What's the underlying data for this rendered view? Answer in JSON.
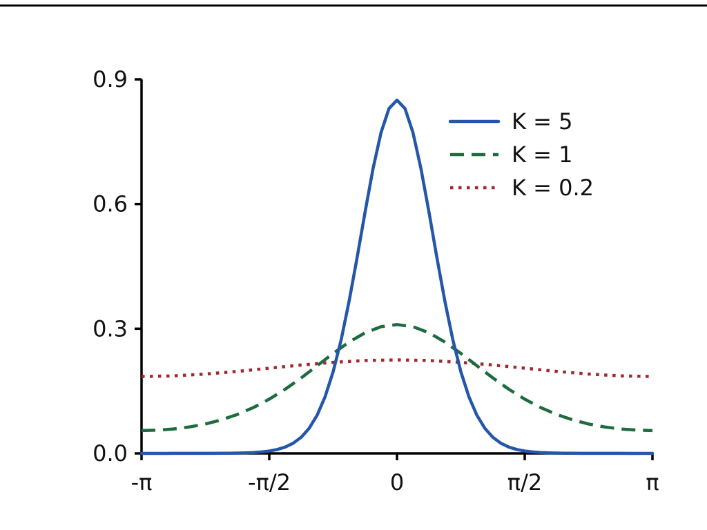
{
  "figure": {
    "background": "#ffffff",
    "top_border_color": "#000000",
    "text_color": "#111111",
    "axis_color": "#000000"
  },
  "chart_data": {
    "type": "line",
    "title": "",
    "xlabel": "",
    "ylabel": "",
    "xlim_pi": [
      -1,
      1
    ],
    "ylim": [
      0,
      0.9
    ],
    "grid": false,
    "legend": {
      "position": "upper-right",
      "frame": false
    },
    "x_ticks": [
      {
        "value_pi": -1.0,
        "label": "-π"
      },
      {
        "value_pi": -0.5,
        "label": "-π/2"
      },
      {
        "value_pi": 0.0,
        "label": "0"
      },
      {
        "value_pi": 0.5,
        "label": "π/2"
      },
      {
        "value_pi": 1.0,
        "label": "π"
      }
    ],
    "y_ticks": [
      {
        "value": 0.0,
        "label": "0.0"
      },
      {
        "value": 0.3,
        "label": "0.3"
      },
      {
        "value": 0.6,
        "label": "0.6"
      },
      {
        "value": 0.9,
        "label": "0.9"
      }
    ],
    "series": [
      {
        "name": "K = 5",
        "color": "#2457a8",
        "style": "solid",
        "width": 4.5,
        "x_pi": [
          -1.0,
          -0.96875,
          -0.9375,
          -0.90625,
          -0.875,
          -0.84375,
          -0.8125,
          -0.78125,
          -0.75,
          -0.71875,
          -0.6875,
          -0.65625,
          -0.625,
          -0.59375,
          -0.5625,
          -0.53125,
          -0.5,
          -0.46875,
          -0.4375,
          -0.40625,
          -0.375,
          -0.34375,
          -0.3125,
          -0.28125,
          -0.25,
          -0.21875,
          -0.1875,
          -0.15625,
          -0.125,
          -0.09375,
          -0.0625,
          -0.03125,
          0.0,
          0.03125,
          0.0625,
          0.09375,
          0.125,
          0.15625,
          0.1875,
          0.21875,
          0.25,
          0.28125,
          0.3125,
          0.34375,
          0.375,
          0.40625,
          0.4375,
          0.46875,
          0.5,
          0.53125,
          0.5625,
          0.59375,
          0.625,
          0.65625,
          0.6875,
          0.71875,
          0.75,
          0.78125,
          0.8125,
          0.84375,
          0.875,
          0.90625,
          0.9375,
          0.96875,
          1.0
        ],
        "y": [
          0.0,
          0.0,
          0.0,
          0.0,
          0.0001,
          0.0001,
          0.0001,
          0.0001,
          0.0002,
          0.0002,
          0.0004,
          0.0005,
          0.0008,
          0.0013,
          0.0022,
          0.0035,
          0.0057,
          0.0094,
          0.0152,
          0.0245,
          0.0388,
          0.0605,
          0.0921,
          0.1366,
          0.1965,
          0.2732,
          0.366,
          0.471,
          0.5809,
          0.6853,
          0.7722,
          0.8298,
          0.85,
          0.8298,
          0.7722,
          0.6853,
          0.5809,
          0.471,
          0.366,
          0.2732,
          0.1965,
          0.1366,
          0.0921,
          0.0605,
          0.0388,
          0.0245,
          0.0152,
          0.0094,
          0.0057,
          0.0035,
          0.0022,
          0.0013,
          0.0008,
          0.0005,
          0.0004,
          0.0002,
          0.0002,
          0.0001,
          0.0001,
          0.0001,
          0.0001,
          0.0,
          0.0,
          0.0,
          0.0
        ]
      },
      {
        "name": "K = 1",
        "color": "#1d6b3e",
        "style": "dashed",
        "width": 4.5,
        "x_pi": [
          -1.0,
          -0.9375,
          -0.875,
          -0.8125,
          -0.75,
          -0.6875,
          -0.625,
          -0.5625,
          -0.5,
          -0.4375,
          -0.375,
          -0.3125,
          -0.25,
          -0.1875,
          -0.125,
          -0.0625,
          0.0,
          0.0625,
          0.125,
          0.1875,
          0.25,
          0.3125,
          0.375,
          0.4375,
          0.5,
          0.5625,
          0.625,
          0.6875,
          0.75,
          0.8125,
          0.875,
          0.9375,
          1.0
        ],
        "y": [
          0.055,
          0.0559,
          0.0587,
          0.0636,
          0.0708,
          0.0807,
          0.0937,
          0.1103,
          0.1305,
          0.1545,
          0.1817,
          0.2111,
          0.2406,
          0.2679,
          0.2902,
          0.3049,
          0.31,
          0.3049,
          0.2902,
          0.2679,
          0.2406,
          0.2111,
          0.1817,
          0.1545,
          0.1305,
          0.1103,
          0.0937,
          0.0807,
          0.0708,
          0.0636,
          0.0587,
          0.0559,
          0.055
        ]
      },
      {
        "name": "K = 0.2",
        "color": "#a2272f",
        "style": "dotted",
        "width": 4.5,
        "x_pi": [
          -1.0,
          -0.875,
          -0.75,
          -0.625,
          -0.5,
          -0.375,
          -0.25,
          -0.125,
          0.0,
          0.125,
          0.25,
          0.375,
          0.5,
          0.625,
          0.75,
          0.875,
          1.0
        ],
        "y": [
          0.185,
          0.1865,
          0.1909,
          0.1973,
          0.205,
          0.2127,
          0.2191,
          0.2235,
          0.225,
          0.2235,
          0.2191,
          0.2127,
          0.205,
          0.1973,
          0.1909,
          0.1865,
          0.185
        ]
      }
    ]
  }
}
